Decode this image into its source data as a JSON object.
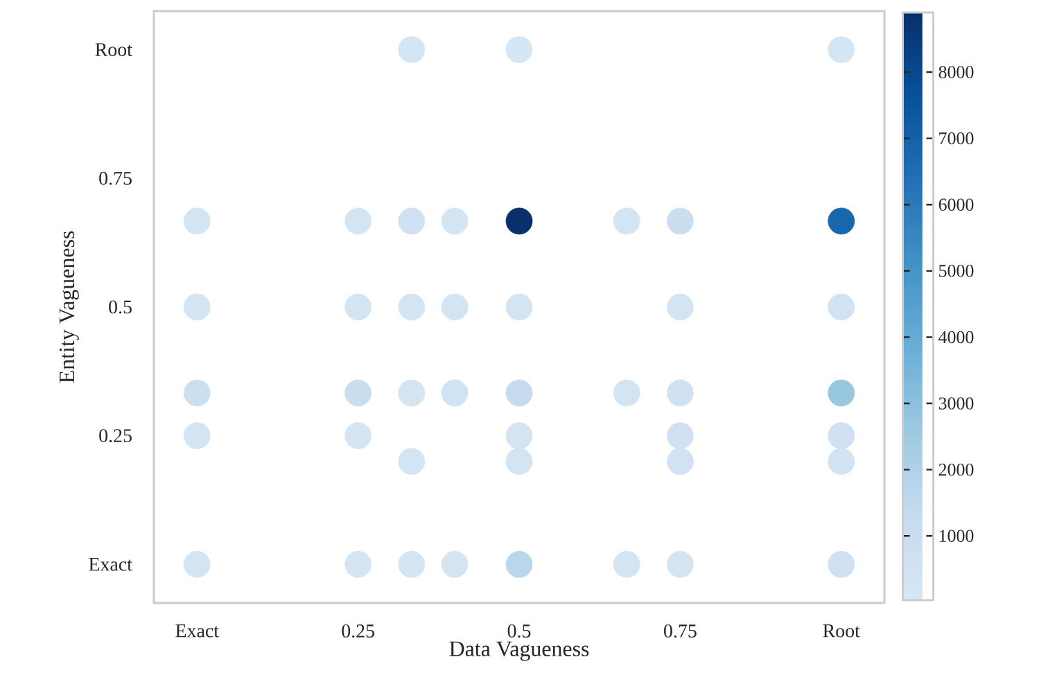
{
  "chart_data": {
    "type": "scatter",
    "xlabel": "Data Vagueness",
    "ylabel": "Entity Vagueness",
    "marker": "circle",
    "x": [
      0.333,
      0.5,
      1,
      0,
      0.25,
      0.333,
      0.4,
      0.5,
      0.667,
      0.75,
      1,
      0,
      0.25,
      0.333,
      0.4,
      0.5,
      0.75,
      1,
      0,
      0.25,
      0.333,
      0.4,
      0.5,
      0.667,
      0.75,
      1,
      0,
      0.25,
      0.5,
      0.75,
      1,
      0.333,
      0.5,
      0.75,
      1,
      0,
      0.25,
      0.333,
      0.4,
      0.5,
      0.667,
      0.75,
      1
    ],
    "values": [
      1,
      1,
      1,
      0.667,
      0.667,
      0.667,
      0.667,
      0.667,
      0.667,
      0.667,
      0.667,
      0.5,
      0.5,
      0.5,
      0.5,
      0.5,
      0.5,
      0.5,
      0.333,
      0.333,
      0.333,
      0.333,
      0.333,
      0.333,
      0.333,
      0.333,
      0.25,
      0.25,
      0.25,
      0.25,
      0.25,
      0.2,
      0.2,
      0.2,
      0.2,
      0,
      0,
      0,
      0,
      0,
      0,
      0,
      0
    ],
    "cvalues": [
      200,
      200,
      200,
      300,
      300,
      700,
      250,
      8900,
      250,
      1000,
      6800,
      300,
      300,
      250,
      300,
      300,
      300,
      400,
      800,
      1000,
      300,
      400,
      1300,
      250,
      500,
      2700,
      300,
      300,
      300,
      600,
      700,
      300,
      300,
      400,
      350,
      300,
      300,
      300,
      300,
      1700,
      250,
      300,
      700
    ],
    "xlim": [
      -0.067,
      1.067
    ],
    "ylim": [
      -0.075,
      1.075
    ],
    "xticks": [
      {
        "value": 0,
        "label": "Exact"
      },
      0.25,
      0.5,
      0.75,
      {
        "value": 1,
        "label": "Root"
      }
    ],
    "yticks": [
      {
        "value": 0,
        "label": "Exact"
      },
      0.25,
      0.5,
      0.75,
      {
        "value": 1,
        "label": "Root"
      }
    ],
    "clim": [
      30,
      8900
    ],
    "cticks": [
      1000,
      2000,
      3000,
      4000,
      5000,
      6000,
      7000,
      8000
    ]
  }
}
